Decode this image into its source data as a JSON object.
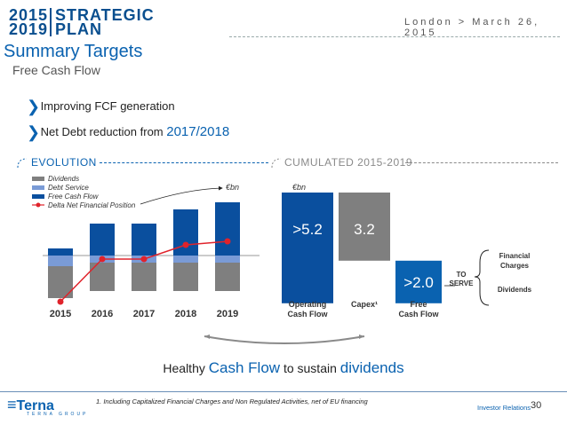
{
  "header": {
    "logo_years_top": "2015",
    "logo_years_bottom": "2019",
    "logo_word_top": "STRATEGIC",
    "logo_word_bottom": "PLAN",
    "date": "London > March 26, 2015"
  },
  "title": "Summary Targets",
  "subtitle": "Free Cash Flow",
  "bullets": [
    {
      "text": "Improving FCF generation",
      "highlight": ""
    },
    {
      "text": "Net Debt reduction from ",
      "highlight": "2017/2018"
    }
  ],
  "evolution": {
    "section_title": "EVOLUTION",
    "unit": "€bn",
    "legend": [
      {
        "label": "Dividends",
        "color": "#7f7f7f"
      },
      {
        "label": "Debt Service",
        "color": "#7a9bd6"
      },
      {
        "label": "Free Cash Flow",
        "color": "#0a4f9e"
      },
      {
        "label": "Delta Net Financial Position",
        "color": "#e0232b"
      }
    ]
  },
  "cumulated": {
    "section_title": "CUMULATED 2015-2019",
    "unit": "€bn"
  },
  "chart_data": [
    {
      "type": "bar",
      "title": "EVOLUTION",
      "categories": [
        "2015",
        "2016",
        "2017",
        "2018",
        "2019"
      ],
      "series": [
        {
          "name": "Free Cash Flow",
          "values": [
            0.1,
            0.45,
            0.45,
            0.65,
            0.75
          ]
        },
        {
          "name": "Debt Service",
          "values": [
            -0.15,
            -0.1,
            -0.1,
            -0.1,
            -0.1
          ]
        },
        {
          "name": "Dividends",
          "values": [
            -0.45,
            -0.4,
            -0.4,
            -0.4,
            -0.4
          ]
        },
        {
          "name": "Delta Net Financial Position",
          "type": "line",
          "values": [
            -0.65,
            -0.05,
            -0.05,
            0.15,
            0.2
          ]
        }
      ],
      "ylabel": "€bn",
      "ylim": [
        -0.75,
        0.85
      ]
    },
    {
      "type": "bar",
      "title": "CUMULATED 2015-2019",
      "categories": [
        "Operating Cash Flow",
        "Capex¹",
        "Free Cash Flow"
      ],
      "values": [
        5.2,
        3.2,
        2.0
      ],
      "data_labels": [
        ">5.2",
        "3.2",
        ">2.0"
      ],
      "ylabel": "€bn",
      "annotation": {
        "arrow_label": "TO SERVE",
        "brace_items": [
          "Financial Charges",
          "Dividends"
        ]
      }
    }
  ],
  "tagline": {
    "pre": "Healthy ",
    "hl1": "Cash Flow",
    "mid": " to sustain ",
    "hl2": "dividends"
  },
  "footnote": "1. Including Capitalized Financial Charges and Non Regulated Activities, net of EU financing",
  "footer": {
    "investor_relations": "Investor Relations",
    "page": "30",
    "company": "Terna",
    "company_sub": "TERNA GROUP"
  }
}
